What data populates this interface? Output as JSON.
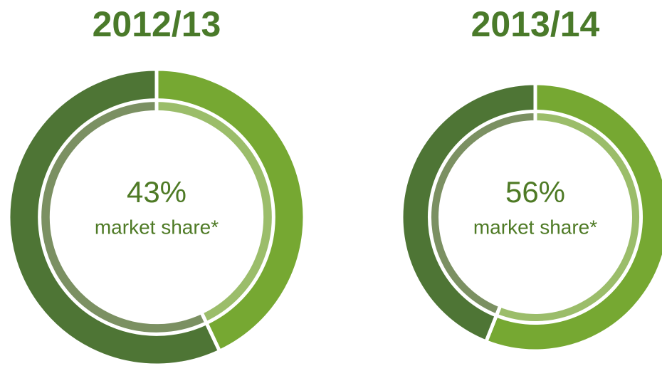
{
  "chart_data": [
    {
      "type": "donut",
      "title": "2012/13",
      "values": [
        43,
        57
      ],
      "colors": [
        "#76a832",
        "#4e7535"
      ],
      "inner_colors": [
        "#9bbd6a",
        "#7b9062"
      ],
      "value_labels": [
        "43%",
        null
      ],
      "subtitle": "market share*"
    },
    {
      "type": "donut",
      "title": "2013/14",
      "values": [
        56,
        44
      ],
      "colors": [
        "#76a832",
        "#4e7535"
      ],
      "inner_colors": [
        "#9bbd6a",
        "#7b9062"
      ],
      "value_labels": [
        "56%",
        null
      ],
      "subtitle": "market share*"
    }
  ]
}
